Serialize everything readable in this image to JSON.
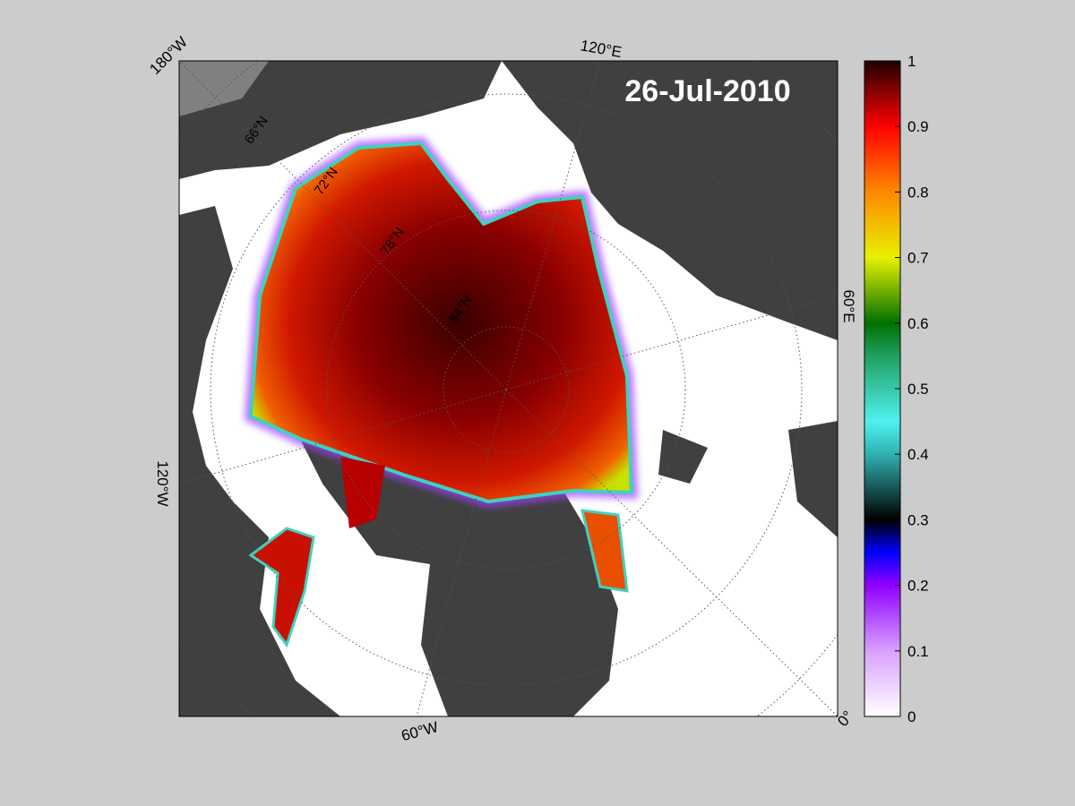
{
  "title": "26-Jul-2010",
  "longitude_labels": [
    "180°W",
    "120°E",
    "60°E",
    "0°",
    "60°W",
    "120°W"
  ],
  "latitude_labels": [
    "66°N",
    "72°N",
    "78°N",
    "84°N"
  ],
  "colorbar": {
    "lim": [
      0,
      1
    ],
    "ticks": [
      0,
      0.1,
      0.2,
      0.3,
      0.4,
      0.5,
      0.6,
      0.7,
      0.8,
      0.9,
      1
    ]
  }
}
